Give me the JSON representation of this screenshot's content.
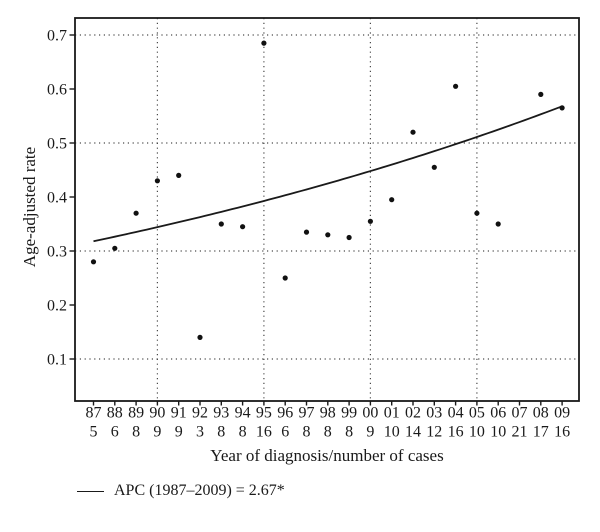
{
  "chart_data": {
    "type": "scatter",
    "title": "",
    "xlabel": "Year of diagnosis/number of cases",
    "ylabel": "Age-adjusted rate",
    "x_tick_rows": [
      "year",
      "number_of_cases"
    ],
    "y_ticks": [
      "0.1",
      "0.2",
      "0.3",
      "0.4",
      "0.5",
      "0.6",
      "0.7"
    ],
    "ylim": [
      0.02,
      0.73
    ],
    "grid": {
      "style": "dotted",
      "vertical_at_years": [
        "90",
        "95",
        "00",
        "05"
      ],
      "horizontal_at_values": [
        0.1,
        0.3,
        0.5,
        0.7
      ]
    },
    "points": [
      {
        "year": "87",
        "cases": "5",
        "rate": 0.28
      },
      {
        "year": "88",
        "cases": "6",
        "rate": 0.305
      },
      {
        "year": "89",
        "cases": "8",
        "rate": 0.37
      },
      {
        "year": "90",
        "cases": "9",
        "rate": 0.43
      },
      {
        "year": "91",
        "cases": "9",
        "rate": 0.44
      },
      {
        "year": "92",
        "cases": "3",
        "rate": 0.14
      },
      {
        "year": "93",
        "cases": "8",
        "rate": 0.35
      },
      {
        "year": "94",
        "cases": "8",
        "rate": 0.345
      },
      {
        "year": "95",
        "cases": "16",
        "rate": 0.685
      },
      {
        "year": "96",
        "cases": "6",
        "rate": 0.25
      },
      {
        "year": "97",
        "cases": "8",
        "rate": 0.335
      },
      {
        "year": "98",
        "cases": "8",
        "rate": 0.33
      },
      {
        "year": "99",
        "cases": "8",
        "rate": 0.325
      },
      {
        "year": "00",
        "cases": "9",
        "rate": 0.355
      },
      {
        "year": "01",
        "cases": "10",
        "rate": 0.395
      },
      {
        "year": "02",
        "cases": "14",
        "rate": 0.52
      },
      {
        "year": "03",
        "cases": "12",
        "rate": 0.455
      },
      {
        "year": "04",
        "cases": "16",
        "rate": 0.605
      },
      {
        "year": "05",
        "cases": "10",
        "rate": 0.37
      },
      {
        "year": "06",
        "cases": "10",
        "rate": 0.35
      },
      {
        "year": "07",
        "cases": "21",
        "rate": null
      },
      {
        "year": "08",
        "cases": "17",
        "rate": 0.59
      },
      {
        "year": "09",
        "cases": "16",
        "rate": 0.565
      }
    ],
    "trend": {
      "type": "exponential",
      "label": "APC (1987–2009) = 2.67*",
      "apc_percent": 2.67,
      "start_year": "87",
      "end_year": "09",
      "start_value": 0.318,
      "end_value": 0.568
    },
    "legend_position": "bottom-left"
  },
  "colors": {
    "background": "#ffffff",
    "axis": "#1a1a1a",
    "text": "#1a1a1a",
    "grid_dots": "#4a4a4a",
    "point": "#111111",
    "trend_line": "#1a1a1a"
  }
}
